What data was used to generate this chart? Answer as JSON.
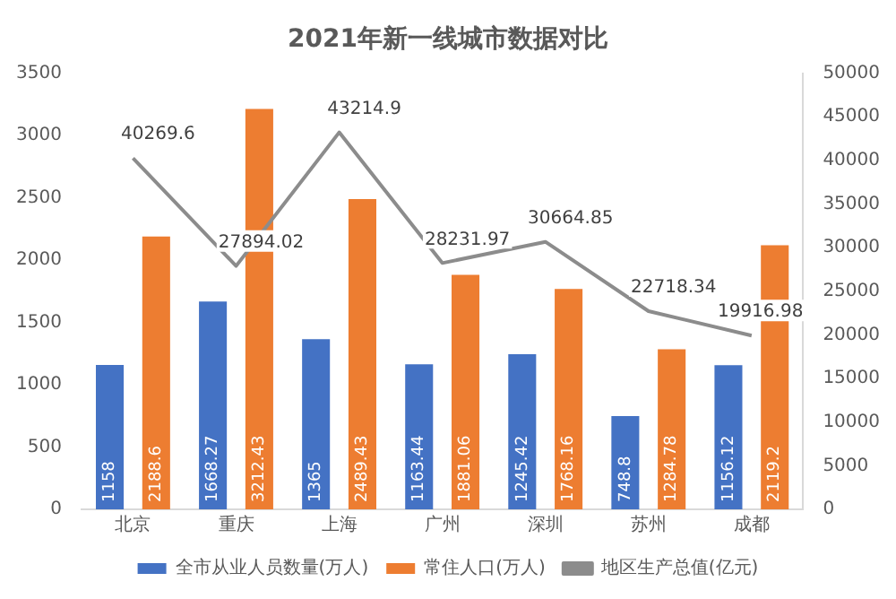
{
  "chart_data": {
    "type": "bar",
    "title": "2021年新一线城市数据对比",
    "categories": [
      "北京",
      "重庆",
      "上海",
      "广州",
      "深圳",
      "苏州",
      "成都"
    ],
    "series": [
      {
        "name": "全市从业人员数量(万人)",
        "color": "#4472c4",
        "values": [
          1158,
          1668.27,
          1365,
          1163.44,
          1245.42,
          748.8,
          1156.12
        ]
      },
      {
        "name": "常住人口(万人)",
        "color": "#ed7d31",
        "values": [
          2188.6,
          3212.43,
          2489.43,
          1881.06,
          1768.16,
          1284.78,
          2119.2
        ]
      },
      {
        "name": "地区生产总值(亿元)",
        "type": "line",
        "axis": "y2",
        "color": "#8c8c8c",
        "values": [
          40269.6,
          27894.02,
          43214.9,
          28231.97,
          30664.85,
          22718.34,
          19916.98
        ]
      }
    ],
    "ylim": [
      0,
      3500
    ],
    "yticks": [
      0,
      500,
      1000,
      1500,
      2000,
      2500,
      3000,
      3500
    ],
    "y2lim": [
      0,
      50000
    ],
    "y2ticks": [
      0,
      5000,
      10000,
      15000,
      20000,
      25000,
      30000,
      35000,
      40000,
      45000,
      50000
    ],
    "grid": false,
    "legend": "bottom",
    "marker": "none",
    "data_labels": true
  }
}
